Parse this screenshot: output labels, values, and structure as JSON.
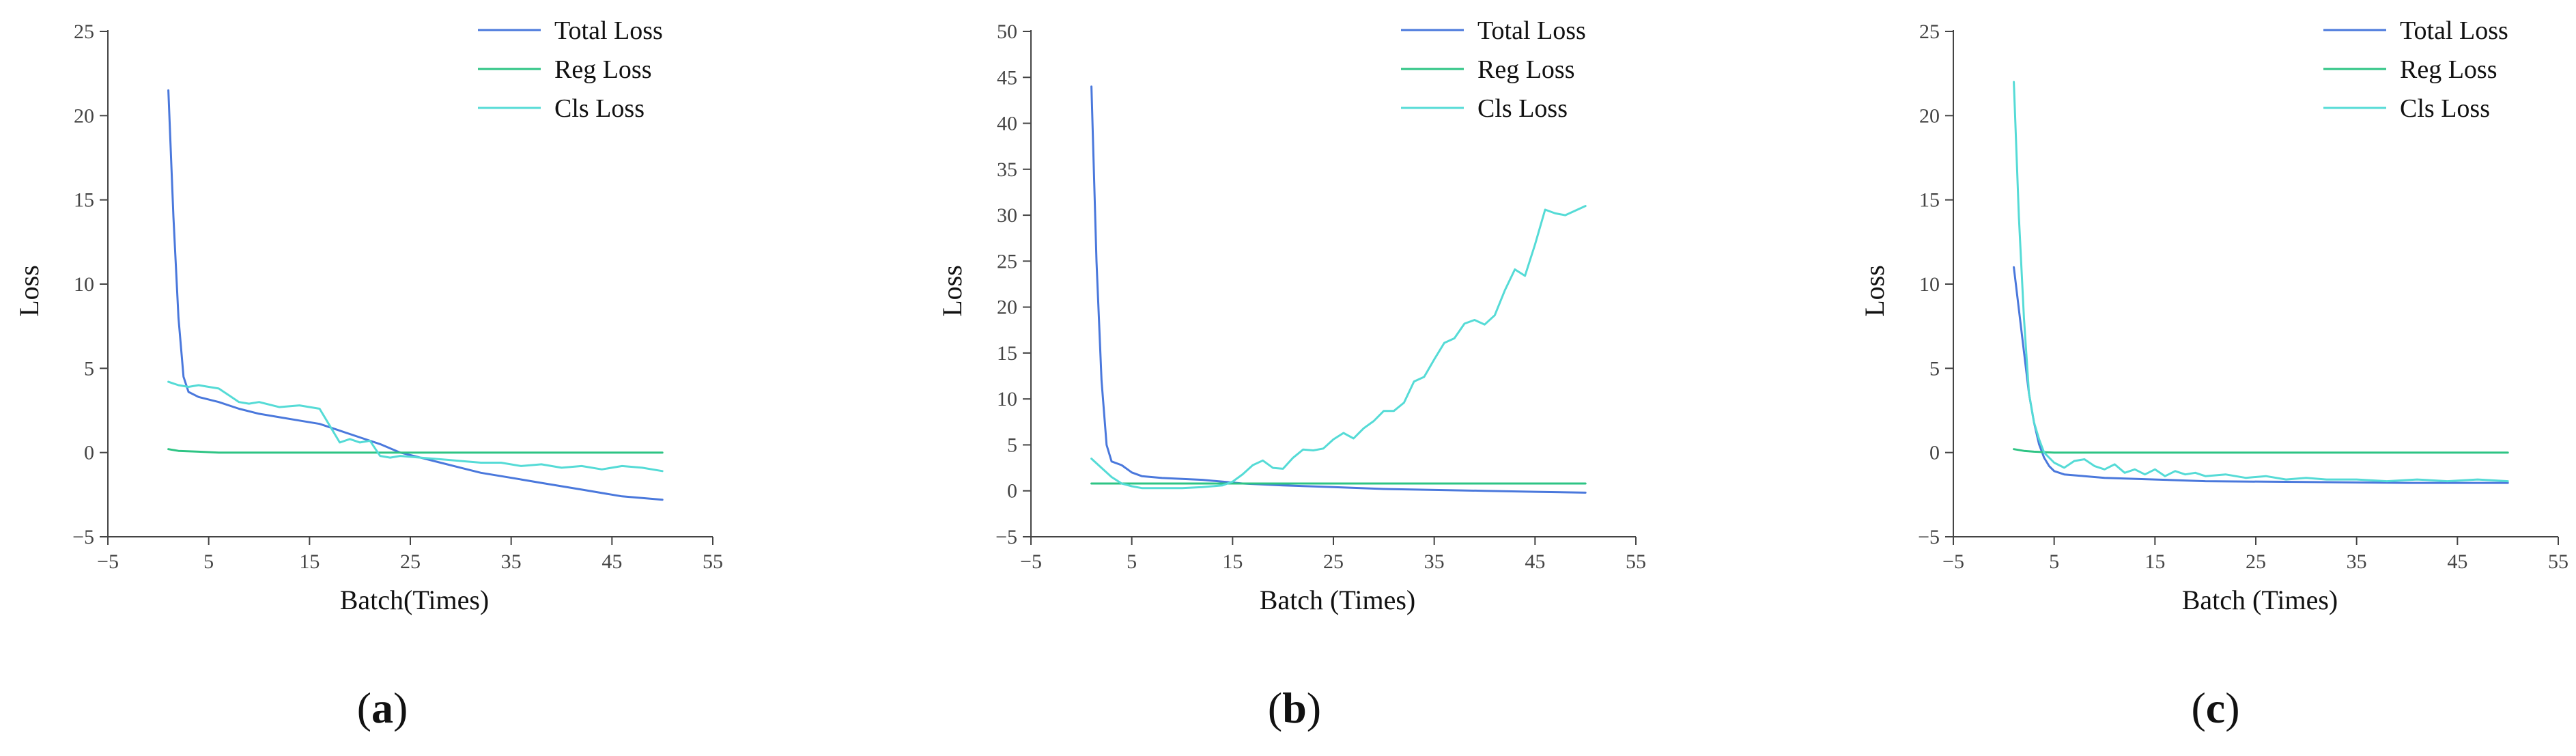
{
  "figure": {
    "panels": [
      {
        "label": "a"
      },
      {
        "label": "b"
      },
      {
        "label": "c"
      }
    ]
  },
  "colors": {
    "total": "#4a78dc",
    "reg": "#2ec484",
    "cls": "#55dbd6",
    "axis": "#444444"
  },
  "chart_data": [
    {
      "type": "line",
      "panel": "a",
      "xlabel": "Batch(Times)",
      "ylabel": "Loss",
      "xlim": [
        -5,
        55
      ],
      "ylim": [
        -5,
        25
      ],
      "xticks": [
        -5,
        5,
        15,
        25,
        35,
        45,
        55
      ],
      "yticks": [
        -5,
        0,
        5,
        10,
        15,
        20,
        25
      ],
      "legend": [
        "Total Loss",
        "Reg Loss",
        "Cls Loss"
      ],
      "legend_position": "top-right",
      "series": [
        {
          "name": "Total Loss",
          "x": [
            1,
            1.5,
            2,
            2.5,
            3,
            4,
            6,
            8,
            10,
            12,
            14,
            16,
            18,
            20,
            22,
            24,
            26,
            28,
            30,
            32,
            34,
            36,
            38,
            40,
            42,
            44,
            46,
            48,
            50
          ],
          "y": [
            21.5,
            14,
            8,
            4.5,
            3.6,
            3.3,
            3.0,
            2.6,
            2.3,
            2.1,
            1.9,
            1.7,
            1.3,
            0.9,
            0.5,
            0.0,
            -0.3,
            -0.6,
            -0.9,
            -1.2,
            -1.4,
            -1.6,
            -1.8,
            -2.0,
            -2.2,
            -2.4,
            -2.6,
            -2.7,
            -2.8
          ]
        },
        {
          "name": "Reg Loss",
          "x": [
            1,
            2,
            4,
            6,
            10,
            20,
            30,
            40,
            50
          ],
          "y": [
            0.2,
            0.1,
            0.05,
            0.0,
            0.0,
            0.0,
            0.0,
            0.0,
            0.0
          ]
        },
        {
          "name": "Cls Loss",
          "x": [
            1,
            2,
            3,
            4,
            5,
            6,
            7,
            8,
            9,
            10,
            12,
            14,
            16,
            17,
            18,
            19,
            20,
            21,
            22,
            23,
            24,
            26,
            28,
            30,
            32,
            34,
            36,
            38,
            40,
            42,
            44,
            46,
            48,
            50
          ],
          "y": [
            4.2,
            4.0,
            3.9,
            4.0,
            3.9,
            3.8,
            3.4,
            3.0,
            2.9,
            3.0,
            2.7,
            2.8,
            2.6,
            1.6,
            0.6,
            0.8,
            0.6,
            0.7,
            -0.2,
            -0.3,
            -0.2,
            -0.3,
            -0.4,
            -0.5,
            -0.6,
            -0.6,
            -0.8,
            -0.7,
            -0.9,
            -0.8,
            -1.0,
            -0.8,
            -0.9,
            -1.1
          ]
        }
      ]
    },
    {
      "type": "line",
      "panel": "b",
      "xlabel": "Batch (Times)",
      "ylabel": "Loss",
      "xlim": [
        -5,
        55
      ],
      "ylim": [
        -5,
        50
      ],
      "xticks": [
        -5,
        5,
        15,
        25,
        35,
        45,
        55
      ],
      "yticks": [
        -5,
        0,
        5,
        10,
        15,
        20,
        25,
        30,
        35,
        40,
        45,
        50
      ],
      "legend": [
        "Total Loss",
        "Reg Loss",
        "Cls Loss"
      ],
      "legend_position": "top-right",
      "series": [
        {
          "name": "Total Loss",
          "x": [
            1,
            1.5,
            2,
            2.5,
            3,
            4,
            5,
            6,
            8,
            10,
            12,
            14,
            16,
            20,
            25,
            30,
            35,
            40,
            45,
            50
          ],
          "y": [
            44,
            25,
            12,
            5,
            3.2,
            2.8,
            2.0,
            1.6,
            1.4,
            1.3,
            1.2,
            1.0,
            0.8,
            0.6,
            0.4,
            0.2,
            0.1,
            0.0,
            -0.1,
            -0.2
          ]
        },
        {
          "name": "Reg Loss",
          "x": [
            1,
            5,
            10,
            20,
            30,
            40,
            50
          ],
          "y": [
            0.8,
            0.8,
            0.8,
            0.8,
            0.8,
            0.8,
            0.8
          ]
        },
        {
          "name": "Cls Loss",
          "x": [
            1,
            2,
            3,
            4,
            5,
            6,
            8,
            10,
            12,
            14,
            15,
            16,
            17,
            18,
            19,
            20,
            21,
            22,
            23,
            24,
            25,
            26,
            27,
            28,
            29,
            30,
            31,
            32,
            33,
            34,
            35,
            36,
            37,
            38,
            39,
            40,
            41,
            42,
            43,
            44,
            45,
            46,
            47,
            48,
            49,
            50
          ],
          "y": [
            3.5,
            2.5,
            1.5,
            0.8,
            0.5,
            0.3,
            0.3,
            0.3,
            0.4,
            0.6,
            1.0,
            1.8,
            2.8,
            3.3,
            2.5,
            2.4,
            3.6,
            4.5,
            4.4,
            4.6,
            5.6,
            6.3,
            5.7,
            6.8,
            7.6,
            8.7,
            8.7,
            9.6,
            11.9,
            12.4,
            14.3,
            16.1,
            16.6,
            18.2,
            18.6,
            18.1,
            19.1,
            21.8,
            24.1,
            23.4,
            26.8,
            30.6,
            30.2,
            30.0,
            30.5,
            31.0
          ]
        }
      ]
    },
    {
      "type": "line",
      "panel": "c",
      "xlabel": "Batch (Times)",
      "ylabel": "Loss",
      "xlim": [
        -5,
        55
      ],
      "ylim": [
        -5,
        25
      ],
      "xticks": [
        -5,
        5,
        15,
        25,
        35,
        45,
        55
      ],
      "yticks": [
        -5,
        0,
        5,
        10,
        15,
        20,
        25
      ],
      "legend": [
        "Total Loss",
        "Reg Loss",
        "Cls Loss"
      ],
      "legend_position": "top-right",
      "series": [
        {
          "name": "Total Loss",
          "x": [
            1,
            1.5,
            2,
            2.5,
            3,
            3.5,
            4,
            4.5,
            5,
            6,
            8,
            10,
            15,
            20,
            30,
            40,
            50
          ],
          "y": [
            11,
            8.5,
            6.0,
            3.5,
            1.8,
            0.5,
            -0.3,
            -0.8,
            -1.1,
            -1.3,
            -1.4,
            -1.5,
            -1.6,
            -1.7,
            -1.75,
            -1.8,
            -1.8
          ]
        },
        {
          "name": "Reg Loss",
          "x": [
            1,
            2,
            3,
            5,
            10,
            20,
            30,
            40,
            50
          ],
          "y": [
            0.2,
            0.1,
            0.05,
            0.0,
            0.0,
            0.0,
            0.0,
            0.0,
            0.0
          ]
        },
        {
          "name": "Cls Loss",
          "x": [
            1,
            1.5,
            2,
            2.5,
            3,
            3.5,
            4,
            5,
            6,
            7,
            8,
            9,
            10,
            11,
            12,
            13,
            14,
            15,
            16,
            17,
            18,
            19,
            20,
            22,
            24,
            26,
            28,
            30,
            32,
            35,
            38,
            41,
            44,
            47,
            50
          ],
          "y": [
            22,
            14,
            8,
            3.5,
            1.8,
            0.8,
            0.0,
            -0.6,
            -0.9,
            -0.5,
            -0.4,
            -0.8,
            -1.0,
            -0.7,
            -1.2,
            -1.0,
            -1.3,
            -1.0,
            -1.4,
            -1.1,
            -1.3,
            -1.2,
            -1.4,
            -1.3,
            -1.5,
            -1.4,
            -1.6,
            -1.5,
            -1.6,
            -1.6,
            -1.7,
            -1.6,
            -1.7,
            -1.6,
            -1.7
          ]
        }
      ]
    }
  ]
}
